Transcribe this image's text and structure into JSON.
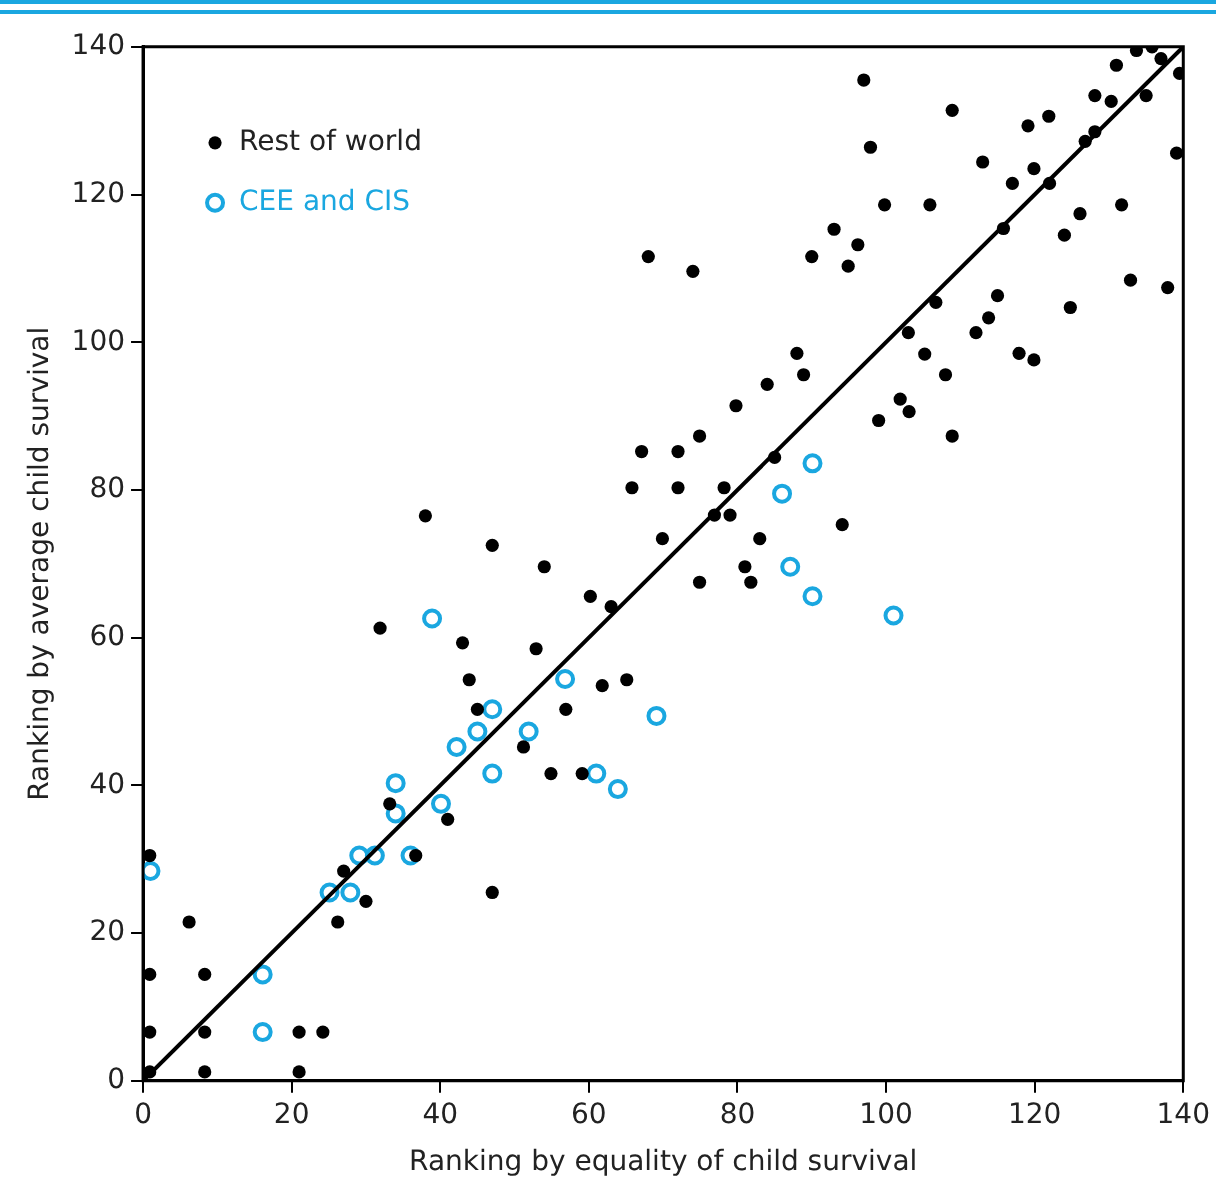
{
  "chart_data": {
    "type": "scatter",
    "xlabel": "Ranking by equality of child survival",
    "ylabel": "Ranking by average child survival",
    "xlim": [
      0,
      140
    ],
    "xticks": [
      0,
      20,
      40,
      60,
      80,
      100,
      120,
      140
    ],
    "ylim": [
      0,
      140
    ],
    "yticks": [
      0,
      20,
      40,
      60,
      80,
      100,
      120,
      140
    ],
    "grid": false,
    "legend": "top left",
    "marker": "circle",
    "series": [
      {
        "name": "Rest of world",
        "color": "#000000",
        "x": [
          0.9,
          0.9,
          0.9,
          0.9,
          6.2,
          8.3,
          8.3,
          8.3,
          21,
          24.2,
          21,
          26.2,
          27,
          30,
          31.9,
          33.2,
          36.7,
          41,
          38,
          43,
          43.9,
          45,
          47,
          47,
          51.2,
          52.9,
          54,
          54.9,
          56.9,
          59.1,
          60.2,
          61.8,
          63,
          65.1,
          65.8,
          67.1,
          68,
          74,
          69.9,
          72,
          72,
          74.9,
          74.9,
          76.9,
          78.2,
          79,
          79.8,
          81,
          81.8,
          83,
          84,
          85,
          88,
          88.9,
          90,
          93,
          94.1,
          94.9,
          96.2,
          97,
          97.9,
          99,
          99.8,
          101.9,
          103,
          103.1,
          105.2,
          105.9,
          106.7,
          108,
          108.9,
          108.9,
          112.1,
          113,
          113.8,
          115,
          115.8,
          117,
          117.9,
          119.1,
          119.9,
          119.9,
          121.9,
          122,
          124,
          124.8,
          126.1,
          126.8,
          128.1,
          128.1,
          130.3,
          131,
          131.7,
          132.9,
          133.7,
          135,
          135.8,
          137,
          137.9,
          139.1,
          139.5
        ],
        "values": [
          30.5,
          14.4,
          6.6,
          1.2,
          21.5,
          14.4,
          6.6,
          1.2,
          6.6,
          6.6,
          1.2,
          21.5,
          28.4,
          24.3,
          61.3,
          37.5,
          30.5,
          35.4,
          76.5,
          59.3,
          54.3,
          50.3,
          72.5,
          25.5,
          45.2,
          58.5,
          69.6,
          41.6,
          50.3,
          41.6,
          65.6,
          53.5,
          64.2,
          54.3,
          80.3,
          85.2,
          111.6,
          109.6,
          73.4,
          85.2,
          80.3,
          87.3,
          67.5,
          76.6,
          80.3,
          76.6,
          91.4,
          69.6,
          67.5,
          73.4,
          94.3,
          84.4,
          98.5,
          95.6,
          111.6,
          115.3,
          75.3,
          110.3,
          113.2,
          135.5,
          126.4,
          89.4,
          118.6,
          92.3,
          101.3,
          90.6,
          98.4,
          118.6,
          105.4,
          95.6,
          131.4,
          87.3,
          101.3,
          124.4,
          103.3,
          106.3,
          115.4,
          121.5,
          98.5,
          129.3,
          123.5,
          97.6,
          130.6,
          121.5,
          114.5,
          104.7,
          117.4,
          127.2,
          133.4,
          128.5,
          132.6,
          137.5,
          118.6,
          108.4,
          139.5,
          133.4,
          140,
          138.4,
          107.4,
          125.6,
          136.4
        ]
      },
      {
        "name": "CEE and CIS",
        "color": "#1aa7e0",
        "x": [
          1,
          16.1,
          16.1,
          25.1,
          27.9,
          29.1,
          31.2,
          36,
          34,
          34,
          40.1,
          38.9,
          42.2,
          45,
          47,
          47,
          51.9,
          56.8,
          61,
          63.9,
          69.1,
          86,
          87.1,
          90.1,
          90.1,
          101
        ],
        "values": [
          28.4,
          14.4,
          6.6,
          25.5,
          25.5,
          30.5,
          30.5,
          30.5,
          40.3,
          36.2,
          37.5,
          62.6,
          45.2,
          47.3,
          50.3,
          41.6,
          47.3,
          54.4,
          41.6,
          39.5,
          49.4,
          79.5,
          69.6,
          83.6,
          65.6,
          63
        ]
      },
      {
        "type": "line",
        "color": "#000000",
        "marker": "none",
        "x": [
          0,
          140
        ],
        "values": [
          0,
          140
        ]
      }
    ]
  }
}
